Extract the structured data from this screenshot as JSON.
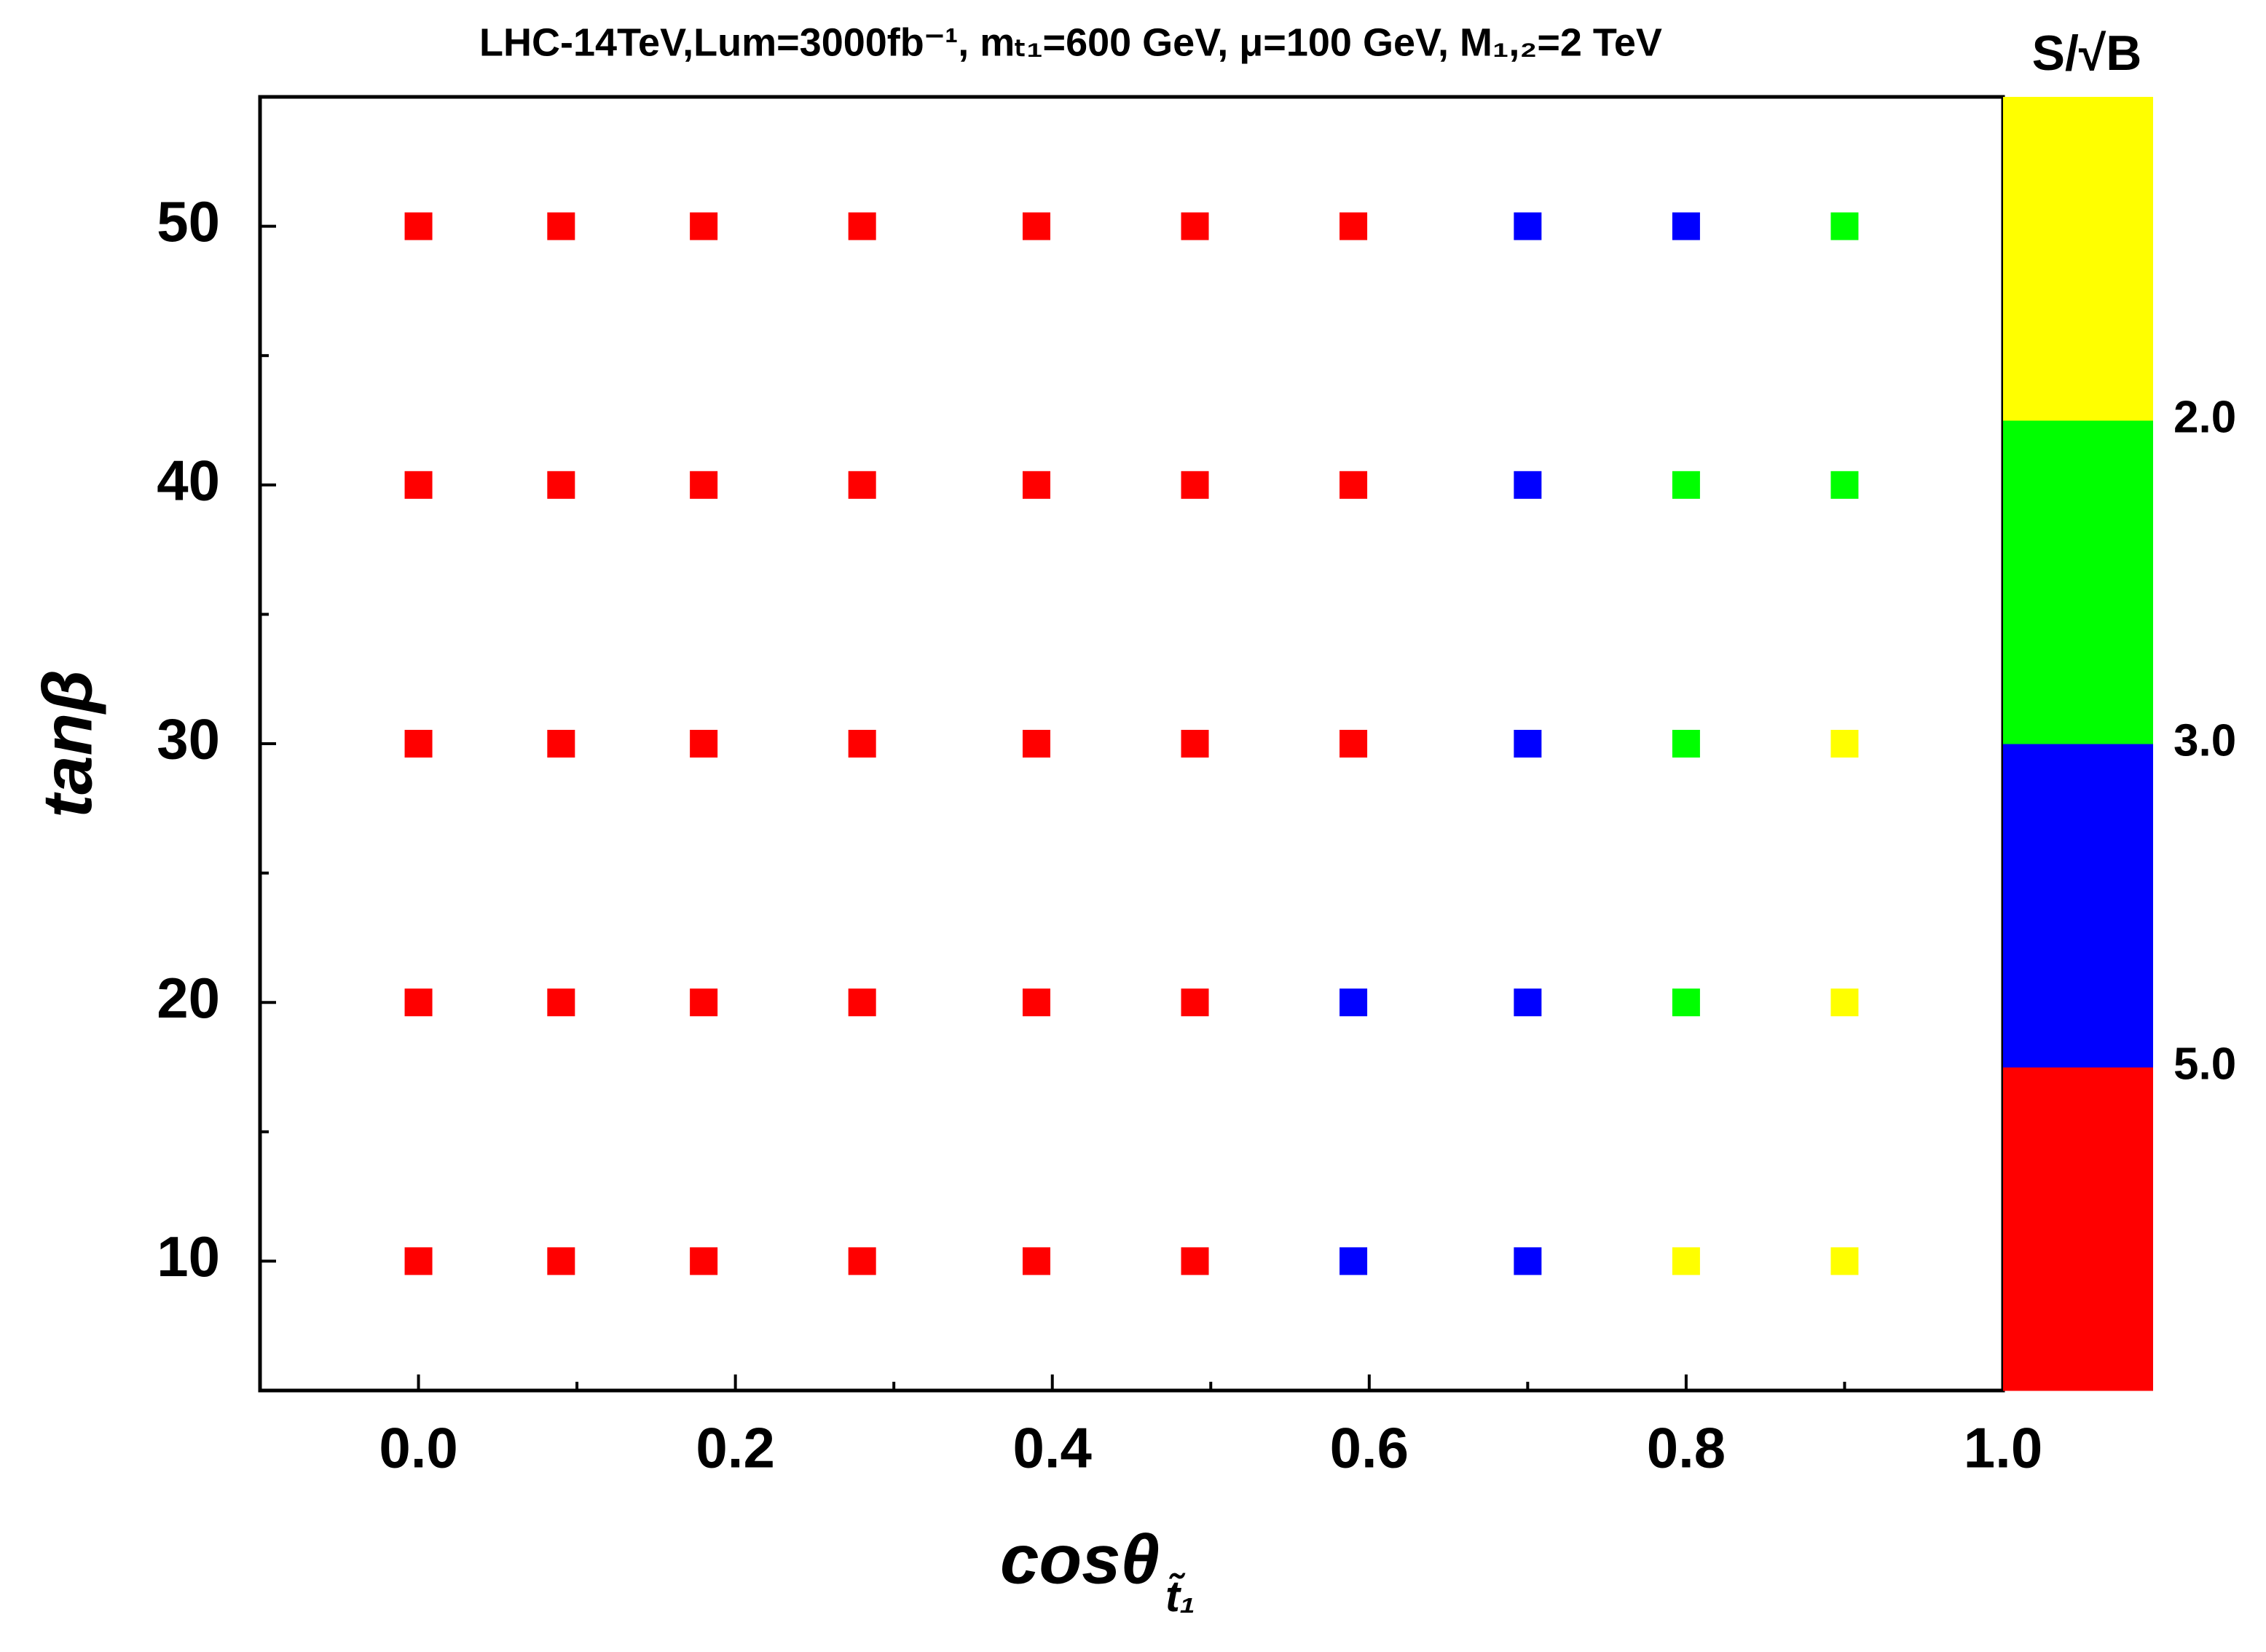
{
  "chart_data": {
    "type": "scatter",
    "title": "LHC-14TeV,Lum=3000fb⁻¹, mₜ₁=600 GeV, μ=100 GeV, M₁,₂=2 TeV",
    "x_label": "cosθ",
    "x_label_subscript": "t̃₁",
    "y_label": "tanβ",
    "xlim": [
      -0.1,
      1.0
    ],
    "xticks": [
      {
        "value": 0,
        "label": "0.0"
      },
      {
        "value": 0.2,
        "label": "0.2"
      },
      {
        "value": 0.4,
        "label": "0.4"
      },
      {
        "value": 0.6,
        "label": "0.6"
      },
      {
        "value": 0.8,
        "label": "0.8"
      },
      {
        "value": 1,
        "label": "1.0"
      }
    ],
    "xminorticks": [
      0.1,
      0.3,
      0.5,
      0.7,
      0.9
    ],
    "ylim": [
      5,
      55
    ],
    "yticks": [
      10,
      20,
      30,
      40,
      50
    ],
    "yminorticks": [
      15,
      25,
      35,
      45
    ],
    "series": [
      {
        "color": "#ff0000",
        "x": [
          0,
          0.09,
          0.18,
          0.28,
          0.39,
          0.49,
          0.59,
          0,
          0.09,
          0.18,
          0.28,
          0.39,
          0.49,
          0.59,
          0,
          0.09,
          0.18,
          0.28,
          0.39,
          0.49,
          0.59,
          0,
          0.09,
          0.18,
          0.28,
          0.39,
          0.49,
          0,
          0.09,
          0.18,
          0.28,
          0.39,
          0.49
        ],
        "values": [
          50,
          50,
          50,
          50,
          50,
          50,
          50,
          40,
          40,
          40,
          40,
          40,
          40,
          40,
          30,
          30,
          30,
          30,
          30,
          30,
          30,
          20,
          20,
          20,
          20,
          20,
          20,
          10,
          10,
          10,
          10,
          10,
          10
        ]
      },
      {
        "color": "#0000ff",
        "x": [
          0.7,
          0.8,
          0.7,
          0.7,
          0.59,
          0.7,
          0.59,
          0.7
        ],
        "values": [
          50,
          50,
          40,
          30,
          20,
          20,
          10,
          10
        ]
      },
      {
        "color": "#00ff00",
        "x": [
          0.9,
          0.8,
          0.9,
          0.8,
          0.8
        ],
        "values": [
          50,
          40,
          40,
          30,
          20
        ]
      },
      {
        "color": "#ffff00",
        "x": [
          0.9,
          0.9,
          0.8,
          0.9
        ],
        "values": [
          30,
          20,
          10,
          10
        ]
      }
    ],
    "colorbar": {
      "title": "S/√B",
      "colors": [
        "#ff0000",
        "#0000ff",
        "#00ff00",
        "#ffff00"
      ],
      "ticks": [
        {
          "value": 5,
          "label": "5.0"
        },
        {
          "value": 3,
          "label": "3.0"
        },
        {
          "value": 2,
          "label": "2.0"
        }
      ]
    }
  }
}
